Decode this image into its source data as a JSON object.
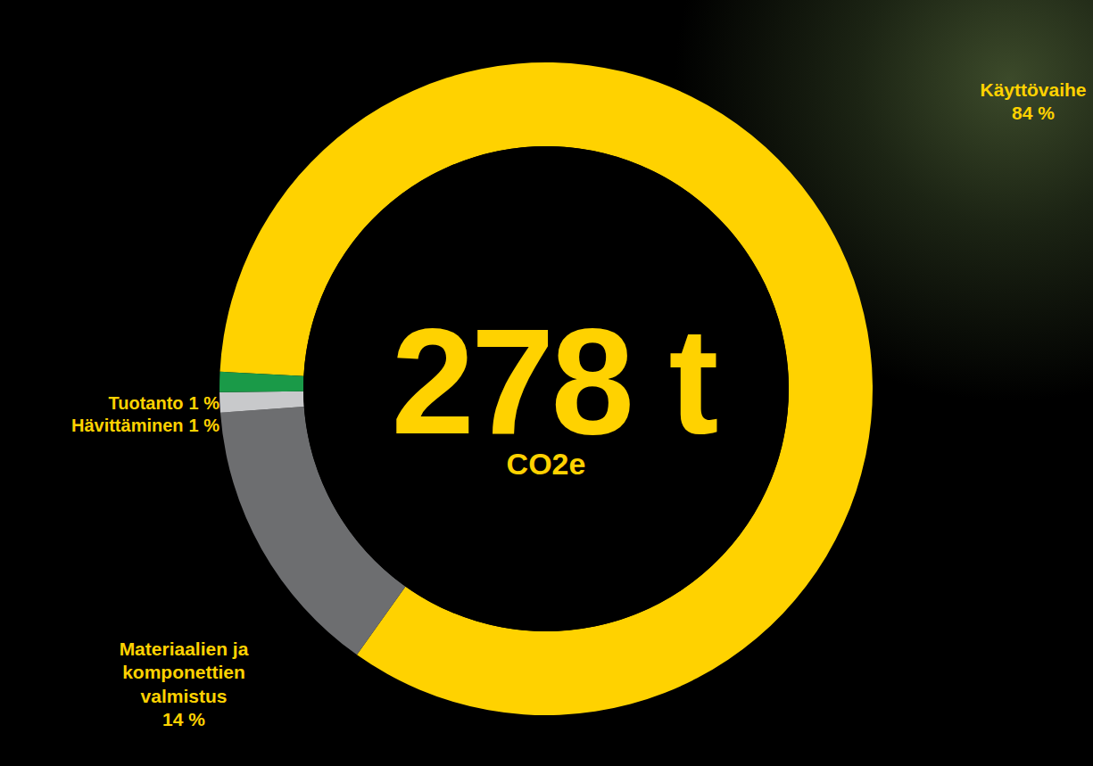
{
  "chart_data": {
    "type": "pie",
    "categories": [
      "Käyttövaihe",
      "Materiaalien ja komponettien valmistus",
      "Hävittäminen",
      "Tuotanto"
    ],
    "values": [
      84,
      14,
      1,
      1
    ],
    "value_labels": [
      "84 %",
      "14 %",
      "1 %",
      "1 %"
    ],
    "colors": [
      "#ffd200",
      "#6d6e70",
      "#c8c9cb",
      "#1a9a48"
    ],
    "center_label": "278 t",
    "center_sublabel": "CO2e",
    "data_labels": true
  }
}
